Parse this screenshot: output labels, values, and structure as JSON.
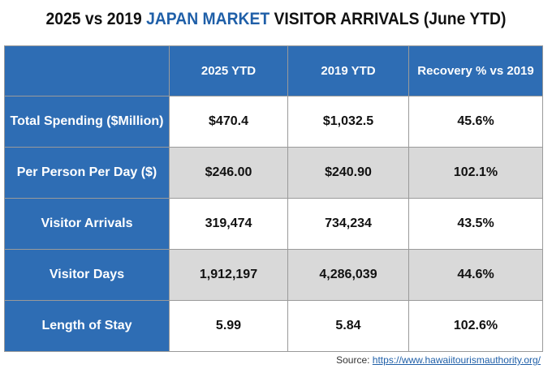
{
  "title": {
    "prefix": "2025 vs 2019 ",
    "highlight": "JAPAN MARKET",
    "suffix": " VISITOR ARRIVALS (June YTD)",
    "highlight_color": "#1f5fa8"
  },
  "table": {
    "headers": [
      "2025 YTD",
      "2019 YTD",
      "Recovery % vs 2019"
    ],
    "rows": [
      {
        "label": "Total Spending ($Million)",
        "values": [
          "$470.4",
          "$1,032.5",
          "45.6%"
        ]
      },
      {
        "label": "Per Person Per Day ($)",
        "values": [
          "$246.00",
          "$240.90",
          "102.1%"
        ]
      },
      {
        "label": "Visitor Arrivals",
        "values": [
          "319,474",
          "734,234",
          "43.5%"
        ]
      },
      {
        "label": "Visitor Days",
        "values": [
          "1,912,197",
          "4,286,039",
          "44.6%"
        ]
      },
      {
        "label": "Length of Stay",
        "values": [
          "5.99",
          "5.84",
          "102.6%"
        ]
      }
    ],
    "header_bg": "#2e6db4",
    "alt_row_bg": "#d9d9d9"
  },
  "source": {
    "prefix": "Source: ",
    "link_text": "https://www.hawaiitourismauthority.org/"
  }
}
